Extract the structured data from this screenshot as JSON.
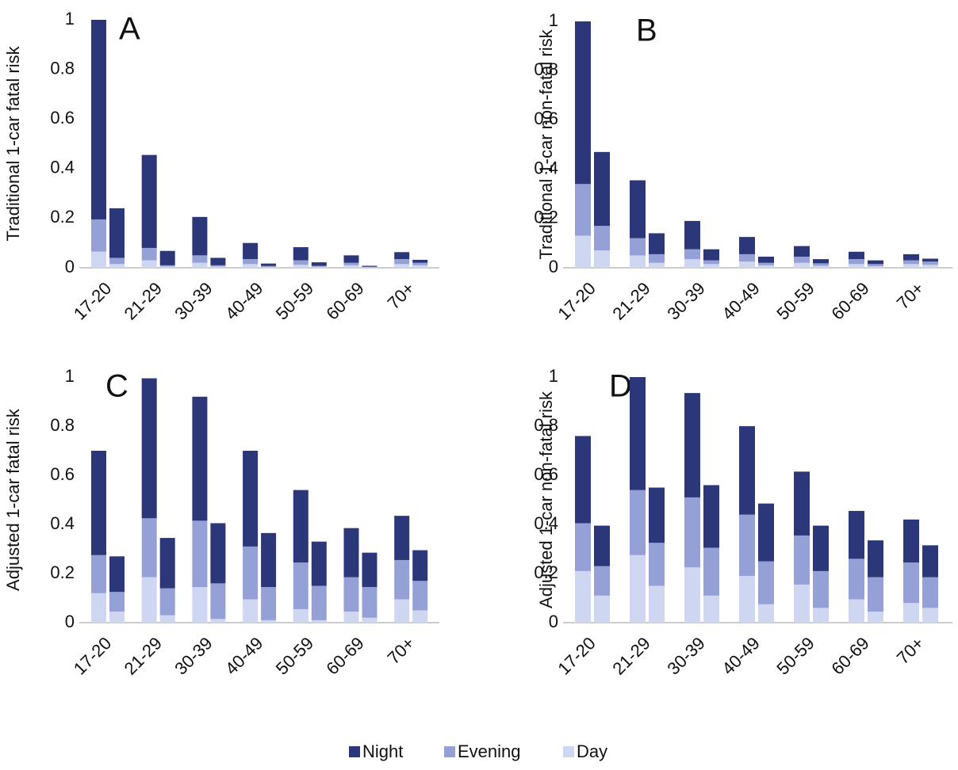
{
  "chart_data": [
    {
      "type": "bar",
      "stacked": true,
      "panel": "A",
      "ylabel": "Traditional 1-car fatal risk",
      "categories": [
        "17-20",
        null,
        "21-29",
        null,
        "30-39",
        null,
        "40-49",
        null,
        "50-59",
        null,
        "60-69",
        null,
        "70+",
        null
      ],
      "series": [
        {
          "name": "Day",
          "color": "#cfd6f2",
          "values": [
            0.065,
            0.015,
            0.03,
            0.005,
            0.02,
            0.005,
            0.015,
            0.003,
            0.012,
            0.004,
            0.01,
            0.002,
            0.015,
            0.01
          ]
        },
        {
          "name": "Evening",
          "color": "#95a1d6",
          "values": [
            0.13,
            0.025,
            0.05,
            0.005,
            0.03,
            0.005,
            0.02,
            0.004,
            0.018,
            0.004,
            0.01,
            0.002,
            0.02,
            0.01
          ]
        },
        {
          "name": "Night",
          "color": "#2b3778",
          "values": [
            0.805,
            0.2,
            0.375,
            0.058,
            0.155,
            0.03,
            0.065,
            0.01,
            0.053,
            0.014,
            0.03,
            0.004,
            0.028,
            0.012
          ]
        }
      ],
      "ylim": [
        0,
        1
      ],
      "yticks": [
        0,
        0.2,
        0.4,
        0.6,
        0.8,
        1
      ]
    },
    {
      "type": "bar",
      "stacked": true,
      "panel": "B",
      "ylabel": "Traditional 1-car non-fatal risk",
      "categories": [
        "17-20",
        null,
        "21-29",
        null,
        "30-39",
        null,
        "40-49",
        null,
        "50-59",
        null,
        "60-69",
        null,
        "70+",
        null
      ],
      "series": [
        {
          "name": "Day",
          "color": "#cfd6f2",
          "values": [
            0.13,
            0.07,
            0.05,
            0.02,
            0.035,
            0.015,
            0.025,
            0.01,
            0.02,
            0.008,
            0.015,
            0.006,
            0.015,
            0.012
          ]
        },
        {
          "name": "Evening",
          "color": "#95a1d6",
          "values": [
            0.21,
            0.1,
            0.07,
            0.035,
            0.04,
            0.015,
            0.03,
            0.01,
            0.025,
            0.01,
            0.02,
            0.009,
            0.015,
            0.013
          ]
        },
        {
          "name": "Night",
          "color": "#2b3778",
          "values": [
            0.66,
            0.3,
            0.235,
            0.085,
            0.115,
            0.045,
            0.07,
            0.025,
            0.043,
            0.017,
            0.03,
            0.015,
            0.025,
            0.012
          ]
        }
      ],
      "ylim": [
        0,
        1
      ],
      "yticks": [
        0,
        0.2,
        0.4,
        0.6,
        0.8,
        1
      ]
    },
    {
      "type": "bar",
      "stacked": true,
      "panel": "C",
      "ylabel": "Adjusted 1-car fatal risk",
      "categories": [
        "17-20",
        null,
        "21-29",
        null,
        "30-39",
        null,
        "40-49",
        null,
        "50-59",
        null,
        "60-69",
        null,
        "70+",
        null
      ],
      "series": [
        {
          "name": "Day",
          "color": "#cfd6f2",
          "values": [
            0.12,
            0.045,
            0.185,
            0.03,
            0.145,
            0.015,
            0.095,
            0.01,
            0.055,
            0.01,
            0.045,
            0.02,
            0.095,
            0.05
          ]
        },
        {
          "name": "Evening",
          "color": "#95a1d6",
          "values": [
            0.155,
            0.08,
            0.24,
            0.11,
            0.27,
            0.145,
            0.215,
            0.135,
            0.19,
            0.14,
            0.14,
            0.125,
            0.16,
            0.12
          ]
        },
        {
          "name": "Night",
          "color": "#2b3778",
          "values": [
            0.425,
            0.145,
            0.57,
            0.205,
            0.505,
            0.245,
            0.39,
            0.22,
            0.295,
            0.18,
            0.2,
            0.14,
            0.18,
            0.125
          ]
        }
      ],
      "ylim": [
        0,
        1
      ],
      "yticks": [
        0,
        0.2,
        0.4,
        0.6,
        0.8,
        1
      ]
    },
    {
      "type": "bar",
      "stacked": true,
      "panel": "D",
      "ylabel": "Adjusted 1-car non-fatal risk",
      "categories": [
        "17-20",
        null,
        "21-29",
        null,
        "30-39",
        null,
        "40-49",
        null,
        "50-59",
        null,
        "60-69",
        null,
        "70+",
        null
      ],
      "series": [
        {
          "name": "Day",
          "color": "#cfd6f2",
          "values": [
            0.21,
            0.11,
            0.275,
            0.15,
            0.225,
            0.11,
            0.19,
            0.075,
            0.155,
            0.06,
            0.095,
            0.045,
            0.08,
            0.06
          ]
        },
        {
          "name": "Evening",
          "color": "#95a1d6",
          "values": [
            0.195,
            0.12,
            0.265,
            0.175,
            0.285,
            0.195,
            0.25,
            0.175,
            0.2,
            0.15,
            0.165,
            0.14,
            0.165,
            0.125
          ]
        },
        {
          "name": "Night",
          "color": "#2b3778",
          "values": [
            0.355,
            0.165,
            0.46,
            0.225,
            0.425,
            0.255,
            0.36,
            0.235,
            0.26,
            0.185,
            0.195,
            0.15,
            0.175,
            0.13
          ]
        }
      ],
      "ylim": [
        0,
        1
      ],
      "yticks": [
        0,
        0.2,
        0.4,
        0.6,
        0.8,
        1
      ]
    }
  ]
}
